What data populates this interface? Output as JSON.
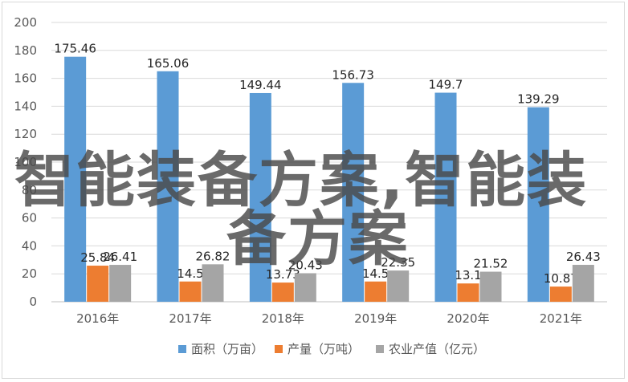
{
  "chart_data": {
    "type": "bar",
    "categories": [
      "2016年",
      "2017年",
      "2018年",
      "2019年",
      "2020年",
      "2021年"
    ],
    "series": [
      {
        "name": "面积（万亩）",
        "color": "#5b9bd5",
        "values": [
          175.46,
          165.06,
          149.44,
          156.73,
          149.7,
          139.29
        ],
        "labels": [
          "175.46",
          "165.06",
          "149.44",
          "156.73",
          "149.7",
          "139.29"
        ]
      },
      {
        "name": "产量（万吨）",
        "color": "#ed7d31",
        "values": [
          25.84,
          14.5,
          13.73,
          14.5,
          13.1,
          10.87
        ],
        "labels": [
          "25.84",
          "14.5",
          "13.73",
          "14.5",
          "13.1",
          "10.87"
        ]
      },
      {
        "name": "农业产值（亿元）",
        "color": "#a5a5a5",
        "values": [
          26.41,
          26.82,
          20.43,
          22.35,
          21.52,
          26.43
        ],
        "labels": [
          "26.41",
          "26.82",
          "20.43",
          "22.35",
          "21.52",
          "26.43"
        ]
      }
    ],
    "yticks": [
      "0",
      "20",
      "40",
      "60",
      "80",
      "100",
      "120",
      "140",
      "160",
      "180",
      "200"
    ],
    "ylim": [
      0,
      200
    ],
    "grid": true,
    "legend_position": "bottom",
    "title": "",
    "xlabel": "",
    "ylabel": ""
  },
  "watermark": {
    "line1": "智能装备方案,智能装",
    "line2": "备方案"
  }
}
